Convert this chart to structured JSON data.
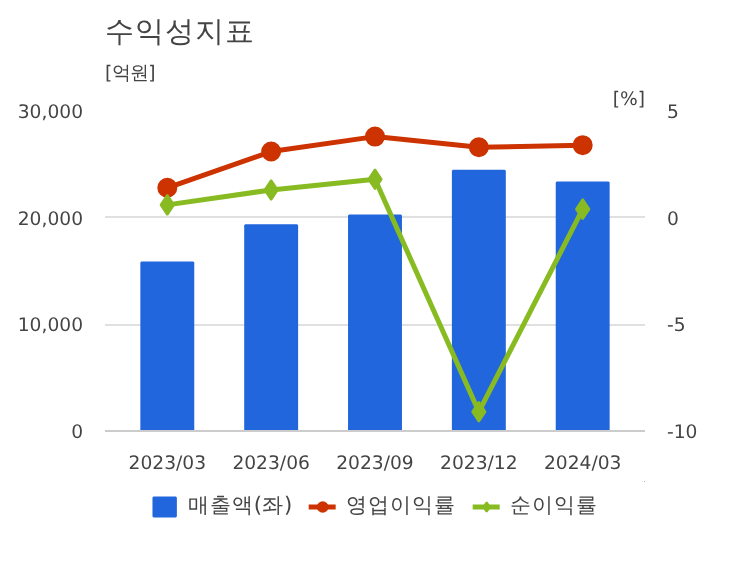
{
  "chart_data": {
    "type": "bar",
    "title": "수익성지표",
    "ylabel": "[억원]",
    "y2label": "[%]",
    "categories": [
      "2023/03",
      "2023/06",
      "2023/09",
      "2023/12",
      "2024/03"
    ],
    "series": [
      {
        "name": "매출액(좌)",
        "color": "#2266dd",
        "values": [
          15800,
          19300,
          20200,
          24400,
          23300
        ]
      },
      {
        "name": "영업이익률",
        "type": "line",
        "axis": "y2",
        "marker": "circle",
        "color": "#cc3300",
        "values": [
          1.4,
          3.1,
          3.8,
          3.3,
          3.4
        ]
      },
      {
        "name": "순이익률",
        "type": "line",
        "axis": "y2",
        "marker": "diamond",
        "color": "#88bb22",
        "values": [
          0.6,
          1.3,
          1.8,
          -9.1,
          0.4
        ]
      }
    ],
    "ylim": [
      0,
      30000
    ],
    "yticks": [
      {
        "value": 0,
        "label": "0"
      },
      {
        "value": 10000,
        "label": "10,000"
      },
      {
        "value": 20000,
        "label": "20,000"
      },
      {
        "value": 30000,
        "label": "30,000"
      }
    ],
    "y2lim": [
      -10,
      5
    ],
    "y2ticks": [
      -10,
      -5,
      0,
      5
    ],
    "grid": "y",
    "legend": "bottom"
  }
}
